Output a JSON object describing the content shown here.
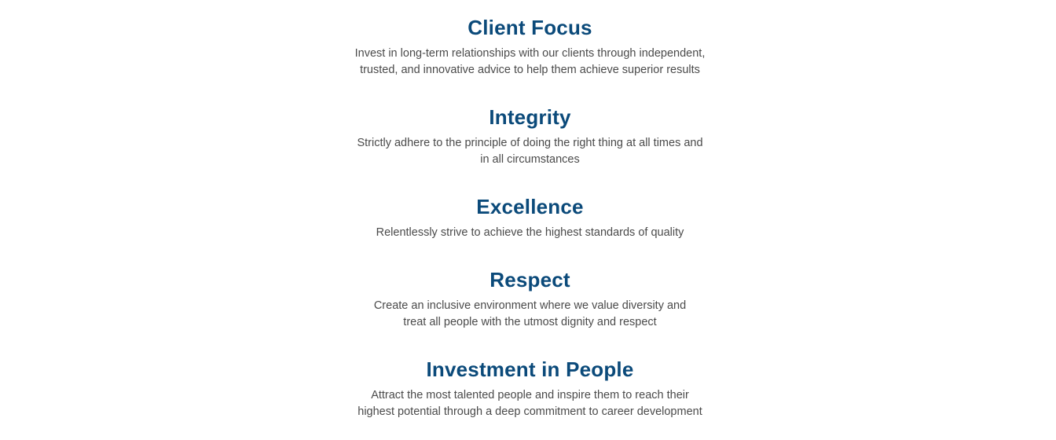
{
  "values": [
    {
      "title": "Client Focus",
      "line1": "Invest in long-term relationships with our clients through independent,",
      "line2": "trusted, and innovative advice to help them achieve superior results"
    },
    {
      "title": "Integrity",
      "line1": "Strictly adhere to the principle of doing the right thing at all times and",
      "line2": "in all circumstances"
    },
    {
      "title": "Excellence",
      "line1": "Relentlessly strive to achieve the highest standards of quality"
    },
    {
      "title": "Respect",
      "line1": "Create an inclusive environment where we value diversity and",
      "line2": "treat all people with the utmost dignity and respect"
    },
    {
      "title": "Investment in People",
      "line1": "Attract the most talented people and inspire them to reach their",
      "line2": "highest potential through a deep commitment to career development"
    }
  ]
}
